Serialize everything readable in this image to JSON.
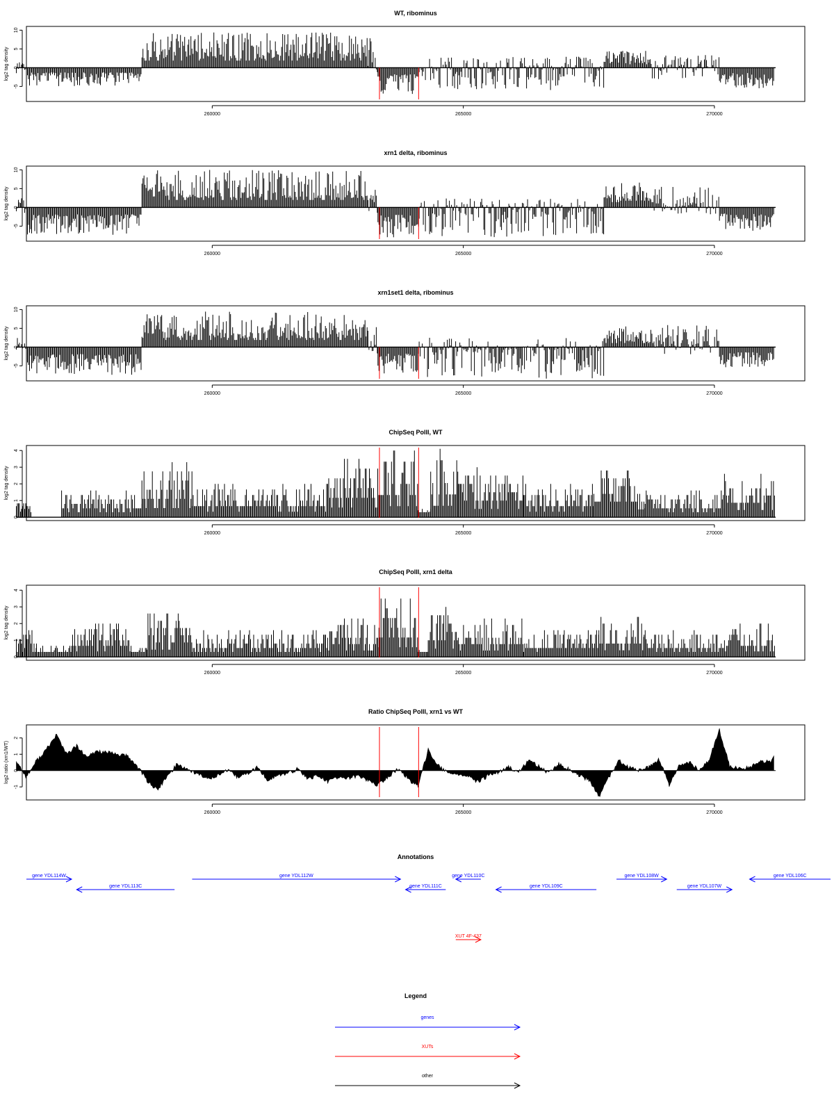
{
  "chart_data": [
    {
      "type": "bar",
      "title": "WT, ribominus",
      "xlabel": "",
      "ylabel": "log2 tag density",
      "xlim": [
        256300,
        271800
      ],
      "ylim": [
        -9,
        11
      ],
      "yticks": [
        -5,
        0,
        5,
        10
      ],
      "xticks": [
        260000,
        265000,
        270000
      ],
      "markers_x": [
        263330,
        264110
      ],
      "grid": false,
      "segments": [
        {
          "x": [
            256100,
            256300
          ],
          "min": -1.5,
          "max": 2
        },
        {
          "x": [
            256300,
            258600
          ],
          "min": -5,
          "max": 0
        },
        {
          "x": [
            258600,
            263100
          ],
          "min": 0,
          "max": 9.5
        },
        {
          "x": [
            263100,
            263300
          ],
          "min": -2,
          "max": 8
        },
        {
          "x": [
            263300,
            264120
          ],
          "min": -7,
          "max": -1
        },
        {
          "x": [
            264120,
            267800
          ],
          "min": -6,
          "max": 3
        },
        {
          "x": [
            267800,
            268700
          ],
          "min": 0,
          "max": 4.5
        },
        {
          "x": [
            268700,
            270100
          ],
          "min": -3,
          "max": 3.5
        },
        {
          "x": [
            270100,
            271200
          ],
          "min": -5.5,
          "max": 0
        }
      ]
    },
    {
      "type": "bar",
      "title": "xrn1 delta, ribominus",
      "xlabel": "",
      "ylabel": "log2 tag density",
      "xlim": [
        256300,
        271800
      ],
      "ylim": [
        -9,
        11
      ],
      "yticks": [
        -5,
        0,
        5,
        10
      ],
      "xticks": [
        260000,
        265000,
        270000
      ],
      "markers_x": [
        263330,
        264110
      ],
      "grid": false,
      "segments": [
        {
          "x": [
            256100,
            256300
          ],
          "min": -1.5,
          "max": 2.5
        },
        {
          "x": [
            256300,
            258600
          ],
          "min": -7.5,
          "max": 0
        },
        {
          "x": [
            258600,
            263100
          ],
          "min": 0,
          "max": 10
        },
        {
          "x": [
            263100,
            263300
          ],
          "min": -2,
          "max": 6
        },
        {
          "x": [
            263300,
            264120
          ],
          "min": -8,
          "max": -1
        },
        {
          "x": [
            264120,
            267800
          ],
          "min": -8,
          "max": 2.5
        },
        {
          "x": [
            267800,
            268800
          ],
          "min": 0,
          "max": 7
        },
        {
          "x": [
            268800,
            270100
          ],
          "min": -2,
          "max": 5.5
        },
        {
          "x": [
            270100,
            271200
          ],
          "min": -6.5,
          "max": 0
        }
      ]
    },
    {
      "type": "bar",
      "title": "xrn1set1 delta, ribominus",
      "xlabel": "",
      "ylabel": "log2 tag density",
      "xlim": [
        256300,
        271800
      ],
      "ylim": [
        -9,
        11
      ],
      "yticks": [
        -5,
        0,
        5,
        10
      ],
      "xticks": [
        260000,
        265000,
        270000
      ],
      "markers_x": [
        263330,
        264110
      ],
      "grid": false,
      "segments": [
        {
          "x": [
            256100,
            256300
          ],
          "min": -1.5,
          "max": 3
        },
        {
          "x": [
            256300,
            258600
          ],
          "min": -7.5,
          "max": 0
        },
        {
          "x": [
            258600,
            263100
          ],
          "min": 0,
          "max": 9.5
        },
        {
          "x": [
            263100,
            263300
          ],
          "min": -2,
          "max": 6
        },
        {
          "x": [
            263300,
            264120
          ],
          "min": -7,
          "max": -1
        },
        {
          "x": [
            264120,
            267800
          ],
          "min": -8.5,
          "max": 2.5
        },
        {
          "x": [
            267800,
            268800
          ],
          "min": 0,
          "max": 5.5
        },
        {
          "x": [
            268800,
            270100
          ],
          "min": -2,
          "max": 6
        },
        {
          "x": [
            270100,
            271200
          ],
          "min": -5.5,
          "max": 0
        }
      ]
    },
    {
      "type": "bar",
      "title": "ChipSeq PolII, WT",
      "xlabel": "",
      "ylabel": "log2 tag density",
      "xlim": [
        256300,
        271800
      ],
      "ylim": [
        -0.2,
        4.3
      ],
      "yticks": [
        0,
        1,
        2,
        3,
        4
      ],
      "xticks": [
        260000,
        265000,
        270000
      ],
      "markers_x": [
        263330,
        264110
      ],
      "grid": false,
      "segments": [
        {
          "x": [
            256100,
            256400
          ],
          "min": 0,
          "max": 1
        },
        {
          "x": [
            256400,
            257000
          ],
          "min": 0,
          "max": 0
        },
        {
          "x": [
            257000,
            258600
          ],
          "min": 0,
          "max": 1.6
        },
        {
          "x": [
            258600,
            259600
          ],
          "min": 0,
          "max": 3.3
        },
        {
          "x": [
            259600,
            262300
          ],
          "min": 0,
          "max": 2
        },
        {
          "x": [
            262300,
            263300
          ],
          "min": 0,
          "max": 3.5
        },
        {
          "x": [
            263300,
            264100
          ],
          "min": 0,
          "max": 4
        },
        {
          "x": [
            264100,
            264350
          ],
          "min": 0,
          "max": 0.5
        },
        {
          "x": [
            264350,
            264900
          ],
          "min": 0,
          "max": 4.1
        },
        {
          "x": [
            264900,
            266200
          ],
          "min": 0,
          "max": 3
        },
        {
          "x": [
            266200,
            267600
          ],
          "min": 0,
          "max": 2
        },
        {
          "x": [
            267600,
            268600
          ],
          "min": 0,
          "max": 2.8
        },
        {
          "x": [
            268600,
            270200
          ],
          "min": 0,
          "max": 1.6
        },
        {
          "x": [
            270200,
            271200
          ],
          "min": 0,
          "max": 2.6
        }
      ]
    },
    {
      "type": "bar",
      "title": "ChipSeq PolII, xrn1 delta",
      "xlabel": "",
      "ylabel": "log2 tag density",
      "xlim": [
        256300,
        271800
      ],
      "ylim": [
        -0.2,
        4.3
      ],
      "yticks": [
        0,
        1,
        2,
        3,
        4
      ],
      "xticks": [
        260000,
        265000,
        270000
      ],
      "markers_x": [
        263330,
        264110
      ],
      "grid": false,
      "segments": [
        {
          "x": [
            256100,
            256500
          ],
          "min": 0,
          "max": 1.6
        },
        {
          "x": [
            256500,
            257200
          ],
          "min": 0,
          "max": 0.8
        },
        {
          "x": [
            257200,
            258400
          ],
          "min": 0,
          "max": 2
        },
        {
          "x": [
            258400,
            258700
          ],
          "min": 0,
          "max": 0.8
        },
        {
          "x": [
            258700,
            259600
          ],
          "min": 0,
          "max": 2.6
        },
        {
          "x": [
            259600,
            262300
          ],
          "min": 0,
          "max": 1.6
        },
        {
          "x": [
            262300,
            263300
          ],
          "min": 0,
          "max": 2.3
        },
        {
          "x": [
            263300,
            264100
          ],
          "min": 0,
          "max": 3.5
        },
        {
          "x": [
            264100,
            264300
          ],
          "min": 0,
          "max": 0.5
        },
        {
          "x": [
            264300,
            264900
          ],
          "min": 0,
          "max": 3
        },
        {
          "x": [
            264900,
            266200
          ],
          "min": 0,
          "max": 2.3
        },
        {
          "x": [
            266200,
            267700
          ],
          "min": 0,
          "max": 1.6
        },
        {
          "x": [
            267700,
            268600
          ],
          "min": 0,
          "max": 2.4
        },
        {
          "x": [
            268600,
            270200
          ],
          "min": 0,
          "max": 1.6
        },
        {
          "x": [
            270200,
            271200
          ],
          "min": 0,
          "max": 2
        }
      ]
    },
    {
      "type": "area",
      "title": "Ratio ChipSeq PolII, xrn1 vs WT",
      "xlabel": "",
      "ylabel": "log2 ratio (xrn1/WT)",
      "xlim": [
        256300,
        271800
      ],
      "ylim": [
        -1.8,
        2.8
      ],
      "yticks": [
        -1,
        0,
        1,
        2
      ],
      "xticks": [
        260000,
        265000,
        270000
      ],
      "markers_x": [
        263330,
        264110
      ],
      "grid": false,
      "x": [
        256100,
        256300,
        256500,
        256700,
        256900,
        257100,
        257300,
        257500,
        257700,
        257900,
        258100,
        258300,
        258500,
        258700,
        258900,
        259100,
        259300,
        259500,
        259700,
        259900,
        260100,
        260300,
        260500,
        260700,
        260900,
        261100,
        261300,
        261500,
        261700,
        261900,
        262100,
        262300,
        262500,
        262700,
        262900,
        263100,
        263300,
        263500,
        263700,
        263900,
        264100,
        264300,
        264500,
        264700,
        264900,
        265100,
        265300,
        265500,
        265700,
        265900,
        266100,
        266300,
        266500,
        266700,
        266900,
        267100,
        267300,
        267500,
        267700,
        267900,
        268100,
        268300,
        268500,
        268700,
        268900,
        269100,
        269300,
        269500,
        269700,
        269900,
        270100,
        270300,
        270500,
        270700,
        270900,
        271100,
        271200
      ],
      "y": [
        0.6,
        -0.4,
        0.6,
        1.3,
        2.2,
        1.0,
        1.5,
        0.8,
        1.2,
        1.1,
        1.0,
        0.9,
        0.3,
        -0.6,
        -1.2,
        -0.4,
        0.4,
        0.1,
        -0.2,
        -0.5,
        -0.3,
        0.0,
        -0.4,
        -0.2,
        0.2,
        -0.6,
        -0.3,
        -0.2,
        0.1,
        -0.5,
        -0.3,
        -0.7,
        -0.4,
        -0.5,
        -0.3,
        -0.6,
        -0.9,
        -0.4,
        0.1,
        -0.5,
        -1.0,
        1.3,
        0.3,
        -0.2,
        -0.2,
        -0.4,
        -0.7,
        -0.3,
        -0.1,
        0.2,
        -0.1,
        0.6,
        0.3,
        -0.2,
        0.4,
        0.1,
        -0.3,
        -0.6,
        -1.6,
        -0.4,
        0.6,
        0.2,
        0.0,
        0.2,
        0.7,
        -0.9,
        0.3,
        0.5,
        0.0,
        0.7,
        2.5,
        0.3,
        0.1,
        0.2,
        0.6,
        0.5,
        0.9
      ]
    }
  ],
  "annotations": {
    "title": "Annotations",
    "items": [
      {
        "label": "gene YDL114W",
        "start": 256250,
        "end": 257200,
        "color": "#0000ff"
      },
      {
        "label": "gene YDL113C",
        "start": 257300,
        "end": 259250,
        "color": "#0000ff"
      },
      {
        "label": "gene YDL112W",
        "start": 259600,
        "end": 263750,
        "color": "#0000ff"
      },
      {
        "label": "gene YDL111C",
        "start": 263850,
        "end": 264650,
        "color": "#0000ff"
      },
      {
        "label": "gene YDL110C",
        "start": 264850,
        "end": 265350,
        "color": "#0000ff"
      },
      {
        "label": "gene YDL109C",
        "start": 265650,
        "end": 267650,
        "color": "#0000ff"
      },
      {
        "label": "gene YDL108W",
        "start": 268050,
        "end": 269050,
        "color": "#0000ff"
      },
      {
        "label": "gene YDL107W",
        "start": 269250,
        "end": 270350,
        "color": "#0000ff"
      },
      {
        "label": "gene YDL106C",
        "start": 270700,
        "end": 272400,
        "color": "#0000ff"
      },
      {
        "label": "XUT 4F-437",
        "start": 264850,
        "end": 265350,
        "color": "#ff0000"
      }
    ]
  },
  "legend": {
    "title": "Legend",
    "items": [
      {
        "label": "genes",
        "color": "#0000ff"
      },
      {
        "label": "XUTs",
        "color": "#ff0000"
      },
      {
        "label": "other",
        "color": "#000000"
      }
    ]
  }
}
